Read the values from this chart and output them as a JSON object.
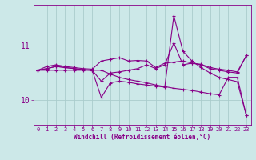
{
  "background_color": "#cce8e8",
  "line_color": "#880088",
  "xlabel": "Windchill (Refroidissement éolien,°C)",
  "x_ticks": [
    0,
    1,
    2,
    3,
    4,
    5,
    6,
    7,
    8,
    9,
    10,
    11,
    12,
    13,
    14,
    15,
    16,
    17,
    18,
    19,
    20,
    21,
    22,
    23
  ],
  "y_ticks": [
    10,
    11
  ],
  "ylim": [
    9.55,
    11.75
  ],
  "xlim": [
    -0.5,
    23.5
  ],
  "grid_color": "#aacccc",
  "series": [
    [
      10.55,
      10.62,
      10.65,
      10.62,
      10.6,
      10.58,
      10.57,
      10.72,
      10.75,
      10.78,
      10.72,
      10.73,
      10.72,
      10.6,
      10.68,
      10.7,
      10.72,
      10.68,
      10.66,
      10.6,
      10.57,
      10.55,
      10.52,
      10.82
    ],
    [
      10.55,
      10.58,
      10.62,
      10.6,
      10.58,
      10.56,
      10.55,
      10.35,
      10.5,
      10.52,
      10.55,
      10.58,
      10.65,
      10.58,
      10.65,
      11.05,
      10.65,
      10.68,
      10.65,
      10.58,
      10.55,
      10.52,
      10.5,
      10.82
    ],
    [
      10.55,
      10.58,
      10.62,
      10.6,
      10.58,
      10.56,
      10.55,
      10.05,
      10.32,
      10.35,
      10.33,
      10.3,
      10.28,
      10.26,
      10.24,
      11.55,
      10.9,
      10.72,
      10.6,
      10.5,
      10.42,
      10.38,
      10.34,
      9.72
    ],
    [
      10.55,
      10.55,
      10.55,
      10.55,
      10.55,
      10.55,
      10.55,
      10.55,
      10.48,
      10.42,
      10.38,
      10.35,
      10.32,
      10.28,
      10.25,
      10.22,
      10.2,
      10.18,
      10.15,
      10.12,
      10.1,
      10.42,
      10.42,
      9.72
    ]
  ]
}
